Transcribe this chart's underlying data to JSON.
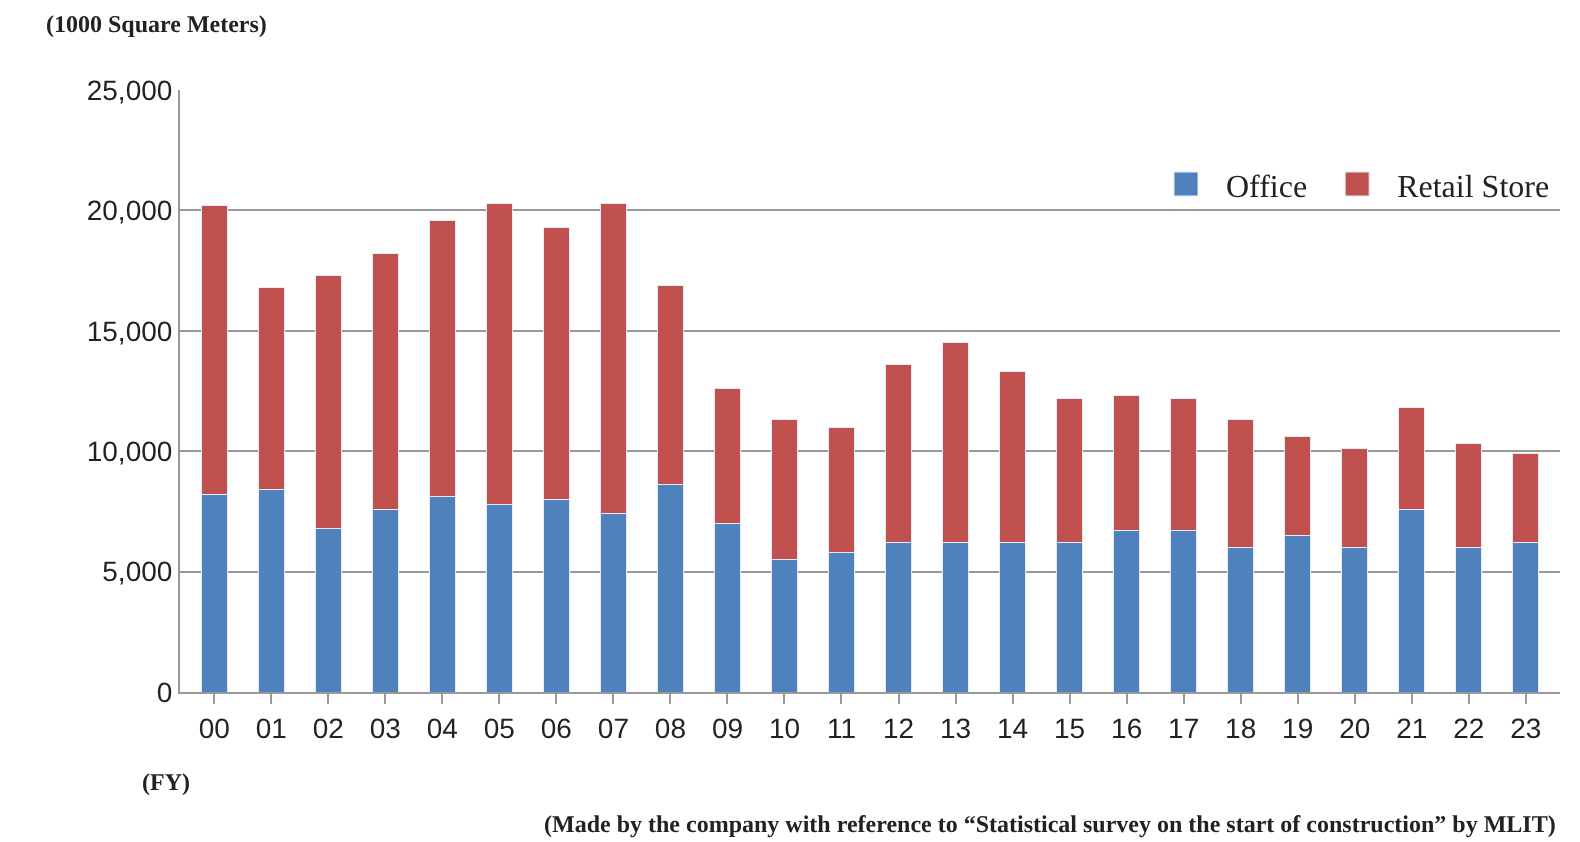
{
  "chart_data": {
    "type": "bar",
    "stacked": true,
    "ylabel": "(1000 Square Meters)",
    "xlabel": "(FY)",
    "categories": [
      "00",
      "01",
      "02",
      "03",
      "04",
      "05",
      "06",
      "07",
      "08",
      "09",
      "10",
      "11",
      "12",
      "13",
      "14",
      "15",
      "16",
      "17",
      "18",
      "19",
      "20",
      "21",
      "22",
      "23"
    ],
    "series": [
      {
        "name": "Office",
        "color": "#4f81bd",
        "values": [
          8200,
          8400,
          6800,
          7600,
          8100,
          7800,
          8000,
          7400,
          8600,
          7000,
          5500,
          5800,
          6200,
          6200,
          6200,
          6200,
          6700,
          6700,
          6000,
          6500,
          6000,
          7600,
          6000,
          6200
        ]
      },
      {
        "name": "Retail Store",
        "color": "#c0504d",
        "values": [
          12000,
          8400,
          10500,
          10600,
          11500,
          12500,
          11300,
          12900,
          8300,
          5600,
          5800,
          5200,
          7400,
          8300,
          7100,
          6000,
          5600,
          5500,
          5300,
          4100,
          4100,
          4200,
          4300,
          3700
        ]
      }
    ],
    "ylim": [
      0,
      25000
    ],
    "yticks": [
      {
        "value": 0,
        "label": "0"
      },
      {
        "value": 5000,
        "label": "5,000"
      },
      {
        "value": 10000,
        "label": "10,000"
      },
      {
        "value": 15000,
        "label": "15,000"
      },
      {
        "value": 20000,
        "label": "20,000"
      },
      {
        "value": 25000,
        "label": "25,000"
      }
    ],
    "grid": "y",
    "legend": "top right",
    "annotations": [
      "(Made by the company with reference to “Statistical survey on the start of construction” by MLIT)"
    ]
  }
}
